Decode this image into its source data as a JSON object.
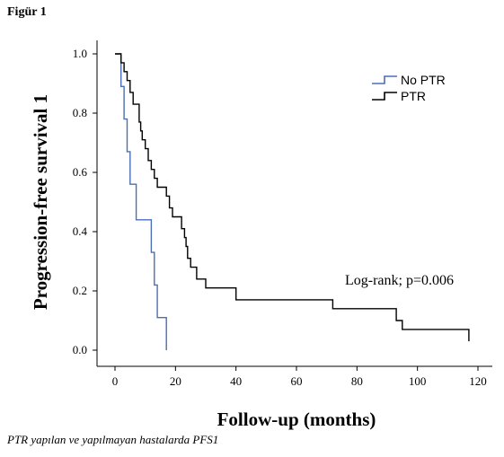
{
  "figure_label": "Figür 1",
  "caption": "PTR yapılan ve yapılmayan hastalarda PFS1",
  "chart_data": {
    "type": "line",
    "step": true,
    "xlabel": "Follow-up (months)",
    "ylabel": "Progression-free survival 1",
    "xlim": [
      0,
      120
    ],
    "ylim": [
      0.0,
      1.0
    ],
    "x_ticks": [
      "0",
      "20",
      "40",
      "60",
      "80",
      "100",
      "120"
    ],
    "y_ticks": [
      "0.0",
      "0.2",
      "0.4",
      "0.6",
      "0.8",
      "1.0"
    ],
    "annotation": "Log-rank; p=0.006",
    "legend_position": "top-right",
    "series": [
      {
        "name": "No PTR",
        "color": "#4a6fb5",
        "points": [
          [
            0,
            1.0
          ],
          [
            2,
            1.0
          ],
          [
            2,
            0.89
          ],
          [
            3,
            0.89
          ],
          [
            3,
            0.78
          ],
          [
            4,
            0.78
          ],
          [
            4,
            0.67
          ],
          [
            5,
            0.67
          ],
          [
            5,
            0.56
          ],
          [
            7,
            0.56
          ],
          [
            7,
            0.44
          ],
          [
            12,
            0.44
          ],
          [
            12,
            0.33
          ],
          [
            13,
            0.33
          ],
          [
            13,
            0.22
          ],
          [
            14,
            0.22
          ],
          [
            14,
            0.11
          ],
          [
            17,
            0.11
          ],
          [
            17,
            0.0
          ]
        ]
      },
      {
        "name": "PTR",
        "color": "#000000",
        "points": [
          [
            0,
            1.0
          ],
          [
            2,
            1.0
          ],
          [
            2,
            0.97
          ],
          [
            3,
            0.97
          ],
          [
            3,
            0.94
          ],
          [
            4,
            0.94
          ],
          [
            4,
            0.91
          ],
          [
            5,
            0.91
          ],
          [
            5,
            0.87
          ],
          [
            6,
            0.87
          ],
          [
            6,
            0.83
          ],
          [
            8,
            0.83
          ],
          [
            8,
            0.77
          ],
          [
            8.5,
            0.77
          ],
          [
            8.5,
            0.74
          ],
          [
            9,
            0.74
          ],
          [
            9,
            0.71
          ],
          [
            10,
            0.71
          ],
          [
            10,
            0.68
          ],
          [
            11,
            0.68
          ],
          [
            11,
            0.64
          ],
          [
            12,
            0.64
          ],
          [
            12,
            0.61
          ],
          [
            13,
            0.61
          ],
          [
            13,
            0.58
          ],
          [
            14,
            0.58
          ],
          [
            14,
            0.55
          ],
          [
            17,
            0.55
          ],
          [
            17,
            0.52
          ],
          [
            18,
            0.52
          ],
          [
            18,
            0.48
          ],
          [
            19,
            0.48
          ],
          [
            19,
            0.45
          ],
          [
            22,
            0.45
          ],
          [
            22,
            0.41
          ],
          [
            23,
            0.41
          ],
          [
            23,
            0.38
          ],
          [
            23.5,
            0.38
          ],
          [
            23.5,
            0.35
          ],
          [
            24,
            0.35
          ],
          [
            24,
            0.31
          ],
          [
            25,
            0.31
          ],
          [
            25,
            0.28
          ],
          [
            27,
            0.28
          ],
          [
            27,
            0.24
          ],
          [
            30,
            0.24
          ],
          [
            30,
            0.21
          ],
          [
            40,
            0.21
          ],
          [
            40,
            0.17
          ],
          [
            72,
            0.17
          ],
          [
            72,
            0.14
          ],
          [
            93,
            0.14
          ],
          [
            93,
            0.1
          ],
          [
            95,
            0.1
          ],
          [
            95,
            0.07
          ],
          [
            117,
            0.07
          ],
          [
            117,
            0.03
          ]
        ]
      }
    ]
  }
}
